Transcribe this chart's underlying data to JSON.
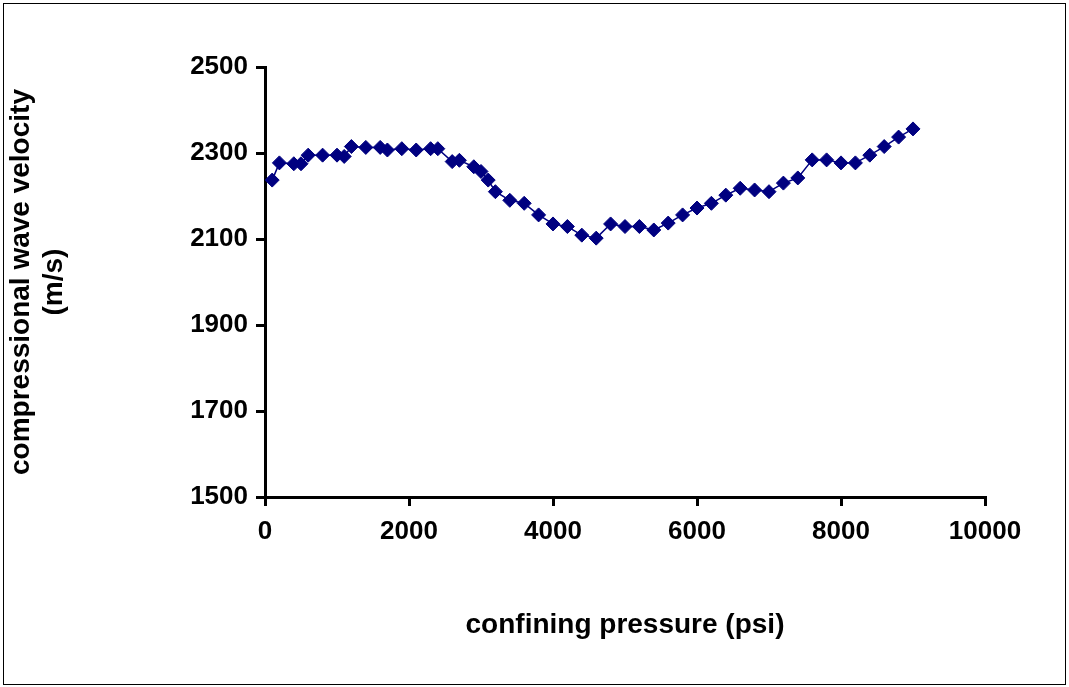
{
  "chart_data": {
    "type": "line",
    "xlabel": "confining pressure (psi)",
    "ylabel": "compressional wave velocity (m/s)",
    "marker": "diamond",
    "grid": false,
    "legend": false,
    "xlim": [
      0,
      10000
    ],
    "xticks": [
      0,
      2000,
      4000,
      6000,
      8000,
      10000
    ],
    "ylim": [
      1500,
      2500
    ],
    "yticks": [
      1500,
      1700,
      1900,
      2100,
      2300,
      2500
    ],
    "series": [
      {
        "color": "#000080",
        "x": [
          100,
          200,
          400,
          500,
          600,
          800,
          1000,
          1100,
          1200,
          1400,
          1600,
          1700,
          1900,
          2100,
          2300,
          2400,
          2600,
          2700,
          2900,
          3000,
          3100,
          3200,
          3400,
          3600,
          3800,
          4000,
          4200,
          4400,
          4600,
          4800,
          5000,
          5200,
          5400,
          5600,
          5800,
          6000,
          6200,
          6400,
          6600,
          6800,
          7000,
          7200,
          7400,
          7600,
          7800,
          8000,
          8200,
          8400,
          8600,
          8800,
          9000
        ],
        "values": [
          2237,
          2277,
          2275,
          2275,
          2295,
          2295,
          2295,
          2292,
          2315,
          2313,
          2313,
          2307,
          2310,
          2307,
          2310,
          2310,
          2280,
          2283,
          2268,
          2257,
          2237,
          2210,
          2190,
          2183,
          2156,
          2135,
          2129,
          2109,
          2102,
          2135,
          2129,
          2129,
          2121,
          2137,
          2156,
          2172,
          2183,
          2202,
          2218,
          2214,
          2210,
          2230,
          2242,
          2284,
          2284,
          2277,
          2277,
          2295,
          2315,
          2337,
          2356
        ]
      }
    ]
  }
}
